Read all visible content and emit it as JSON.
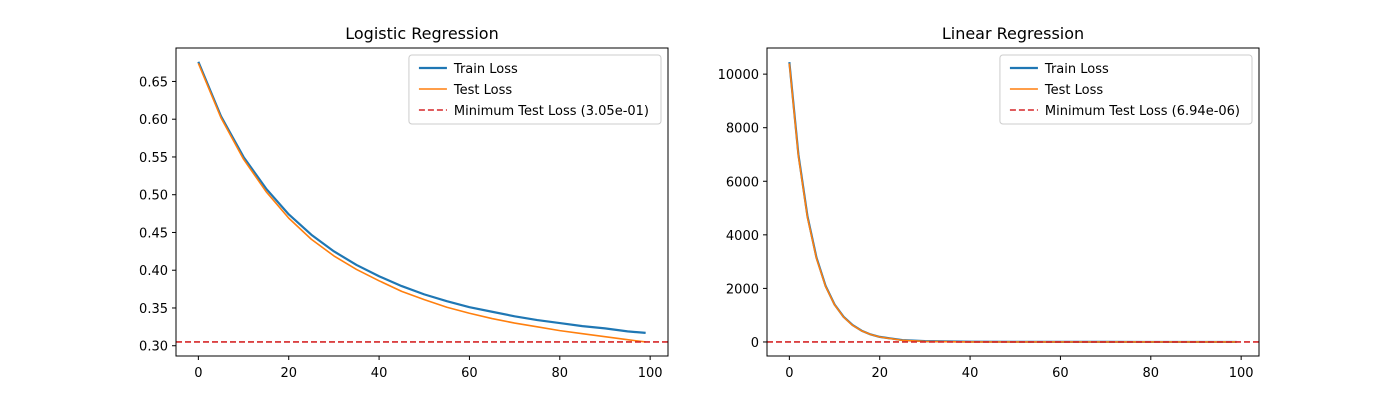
{
  "chart_data": [
    {
      "type": "line",
      "title": "Logistic Regression",
      "xlabel": "",
      "ylabel": "",
      "xlim": [
        -4.95,
        103.95
      ],
      "ylim": [
        0.2864,
        0.6943
      ],
      "xticks": [
        0,
        20,
        40,
        60,
        80,
        100
      ],
      "yticks": [
        0.3,
        0.35,
        0.4,
        0.45,
        0.5,
        0.55,
        0.6,
        0.65
      ],
      "xtick_labels": [
        "0",
        "20",
        "40",
        "60",
        "80",
        "100"
      ],
      "ytick_labels": [
        "0.30",
        "0.35",
        "0.40",
        "0.45",
        "0.50",
        "0.55",
        "0.60",
        "0.65"
      ],
      "grid": false,
      "legend_position": "upper right",
      "series": [
        {
          "name": "Train Loss",
          "color": "#1f77b4",
          "style": "solid",
          "x": [
            0,
            5,
            10,
            15,
            20,
            25,
            30,
            35,
            40,
            45,
            50,
            55,
            60,
            65,
            70,
            75,
            80,
            85,
            90,
            95,
            99
          ],
          "y": [
            0.676,
            0.604,
            0.55,
            0.508,
            0.474,
            0.447,
            0.425,
            0.407,
            0.392,
            0.379,
            0.368,
            0.359,
            0.351,
            0.345,
            0.339,
            0.334,
            0.33,
            0.326,
            0.323,
            0.319,
            0.317
          ]
        },
        {
          "name": "Test Loss",
          "color": "#ff7f0e",
          "style": "solid",
          "x": [
            0,
            5,
            10,
            15,
            20,
            25,
            30,
            35,
            40,
            45,
            50,
            55,
            60,
            65,
            70,
            75,
            80,
            85,
            90,
            95,
            99
          ],
          "y": [
            0.674,
            0.602,
            0.547,
            0.504,
            0.469,
            0.441,
            0.419,
            0.401,
            0.386,
            0.372,
            0.361,
            0.351,
            0.343,
            0.336,
            0.33,
            0.325,
            0.32,
            0.316,
            0.312,
            0.308,
            0.305
          ]
        }
      ],
      "reference_lines": [
        {
          "name": "Minimum Test Loss (3.05e-01)",
          "orientation": "horizontal",
          "y": 0.305,
          "color": "#d62728",
          "style": "dashed"
        }
      ]
    },
    {
      "type": "line",
      "title": "Linear Regression",
      "xlabel": "",
      "ylabel": "",
      "xlim": [
        -4.95,
        103.95
      ],
      "ylim": [
        -524,
        10976
      ],
      "xticks": [
        0,
        20,
        40,
        60,
        80,
        100
      ],
      "yticks": [
        0,
        2000,
        4000,
        6000,
        8000,
        10000
      ],
      "xtick_labels": [
        "0",
        "20",
        "40",
        "60",
        "80",
        "100"
      ],
      "ytick_labels": [
        "0",
        "2000",
        "4000",
        "6000",
        "8000",
        "10000"
      ],
      "grid": false,
      "legend_position": "upper right",
      "series": [
        {
          "name": "Train Loss",
          "color": "#1f77b4",
          "style": "solid",
          "x": [
            0,
            2,
            4,
            6,
            8,
            10,
            12,
            14,
            16,
            18,
            20,
            25,
            30,
            40,
            50,
            60,
            70,
            80,
            90,
            99
          ],
          "y": [
            10450,
            7000,
            4700,
            3150,
            2100,
            1400,
            940,
            630,
            420,
            280,
            190,
            70,
            30,
            10,
            5,
            3,
            2,
            1,
            0.5,
            0.3
          ]
        },
        {
          "name": "Test Loss",
          "color": "#ff7f0e",
          "style": "solid",
          "x": [
            0,
            2,
            4,
            6,
            8,
            10,
            12,
            14,
            16,
            18,
            20,
            25,
            30,
            40,
            50,
            60,
            70,
            80,
            90,
            99
          ],
          "y": [
            10400,
            6950,
            4660,
            3120,
            2080,
            1390,
            930,
            620,
            415,
            278,
            186,
            60,
            20,
            3,
            0.5,
            0.1,
            0.01,
            0.001,
            0.0001,
            6.94e-06
          ]
        }
      ],
      "reference_lines": [
        {
          "name": "Minimum Test Loss (6.94e-06)",
          "orientation": "horizontal",
          "y": 6.94e-06,
          "color": "#d62728",
          "style": "dashed"
        }
      ]
    }
  ]
}
